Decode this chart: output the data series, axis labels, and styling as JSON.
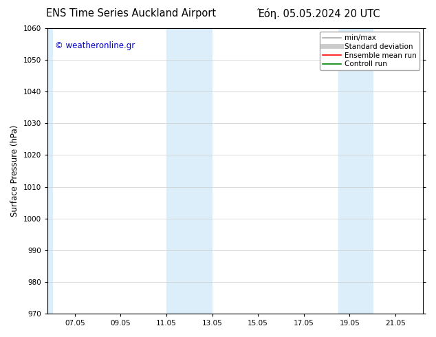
{
  "title_left": "ENS Time Series Auckland Airport",
  "title_right": "Έόη. 05.05.2024 20 UTC",
  "ylabel": "Surface Pressure (hPa)",
  "ylim": [
    970,
    1060
  ],
  "yticks": [
    970,
    980,
    990,
    1000,
    1010,
    1020,
    1030,
    1040,
    1050,
    1060
  ],
  "xtick_positions": [
    1,
    3,
    5,
    7,
    9,
    11,
    13,
    15
  ],
  "xtick_labels": [
    "07.05",
    "09.05",
    "11.05",
    "13.05",
    "15.05",
    "17.05",
    "19.05",
    "21.05"
  ],
  "xlim": [
    -0.2,
    16.2
  ],
  "shaded_regions": [
    {
      "xmin": -0.2,
      "xmax": 0.05,
      "color": "#dceef9"
    },
    {
      "xmin": 5.0,
      "xmax": 7.0,
      "color": "#dceef9"
    },
    {
      "xmin": 12.5,
      "xmax": 14.05,
      "color": "#dceef9"
    }
  ],
  "watermark_text": "© weatheronline.gr",
  "watermark_color": "#0000cc",
  "legend_items": [
    {
      "label": "min/max",
      "color": "#aaaaaa",
      "lw": 1.2,
      "style": "solid"
    },
    {
      "label": "Standard deviation",
      "color": "#cccccc",
      "lw": 5,
      "style": "solid"
    },
    {
      "label": "Ensemble mean run",
      "color": "red",
      "lw": 1.2,
      "style": "solid"
    },
    {
      "label": "Controll run",
      "color": "green",
      "lw": 1.2,
      "style": "solid"
    }
  ],
  "background_color": "#ffffff",
  "grid_color": "#cccccc",
  "title_fontsize": 10.5,
  "label_fontsize": 8.5,
  "tick_fontsize": 7.5,
  "legend_fontsize": 7.5
}
